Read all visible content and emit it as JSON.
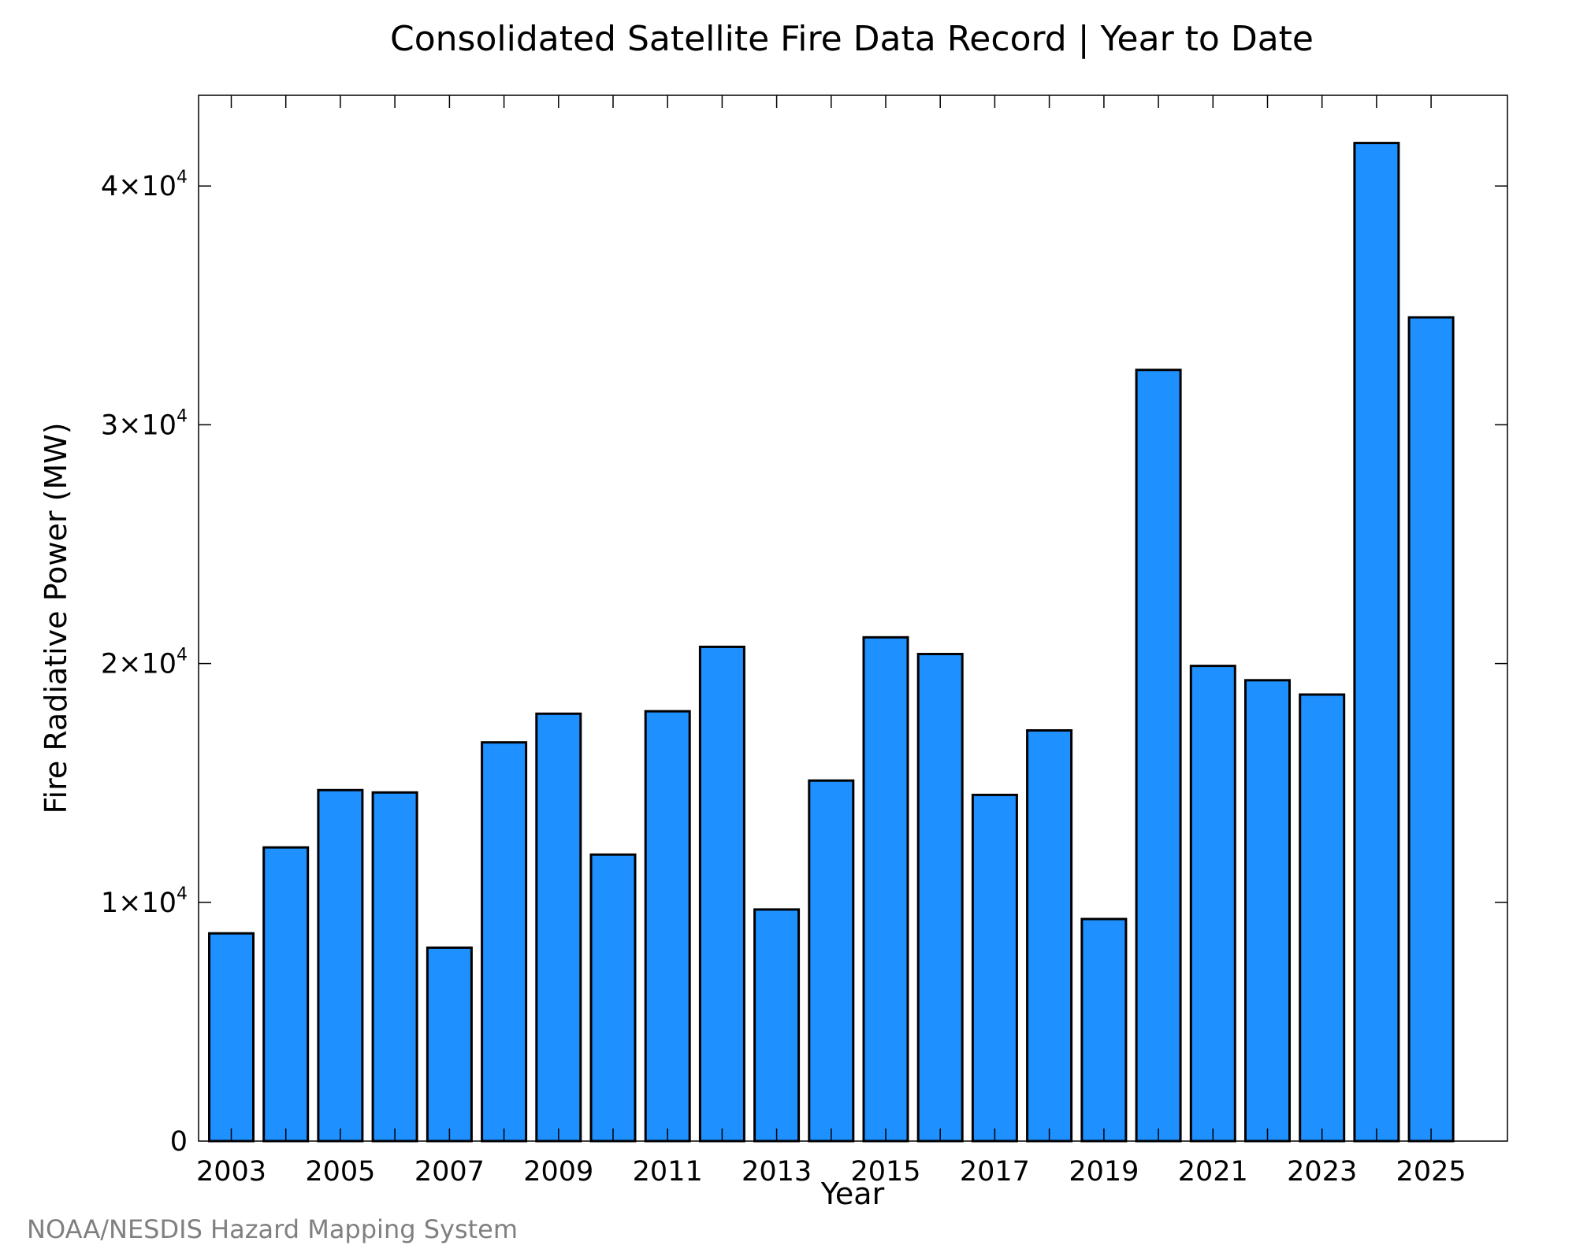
{
  "chart_data": {
    "type": "bar",
    "title": "Consolidated Satellite Fire Data Record | Year to Date",
    "xlabel": "Year",
    "ylabel": "Fire Radiative Power (MW)",
    "categories": [
      2003,
      2004,
      2005,
      2006,
      2007,
      2008,
      2009,
      2010,
      2011,
      2012,
      2013,
      2014,
      2015,
      2016,
      2017,
      2018,
      2019,
      2020,
      2021,
      2022,
      2023,
      2024,
      2025
    ],
    "values": [
      8700,
      12300,
      14700,
      14600,
      8100,
      16700,
      17900,
      12000,
      18000,
      20700,
      9700,
      15100,
      21100,
      20400,
      14500,
      17200,
      9300,
      32300,
      19900,
      19300,
      18700,
      41800,
      34500
    ],
    "ylim": [
      0,
      43800
    ],
    "xlim": [
      2002.4,
      2026.4
    ],
    "x_ticks": [
      {
        "value": 2003,
        "label": "2003"
      },
      {
        "value": 2005,
        "label": "2005"
      },
      {
        "value": 2007,
        "label": "2007"
      },
      {
        "value": 2009,
        "label": "2009"
      },
      {
        "value": 2011,
        "label": "2011"
      },
      {
        "value": 2013,
        "label": "2013"
      },
      {
        "value": 2015,
        "label": "2015"
      },
      {
        "value": 2017,
        "label": "2017"
      },
      {
        "value": 2019,
        "label": "2019"
      },
      {
        "value": 2021,
        "label": "2021"
      },
      {
        "value": 2023,
        "label": "2023"
      },
      {
        "value": 2025,
        "label": "2025"
      }
    ],
    "y_ticks": [
      {
        "value": 0,
        "label": "0",
        "exp": ""
      },
      {
        "value": 10000,
        "label": "1×10",
        "exp": "4"
      },
      {
        "value": 20000,
        "label": "2×10",
        "exp": "4"
      },
      {
        "value": 30000,
        "label": "3×10",
        "exp": "4"
      },
      {
        "value": 40000,
        "label": "4×10",
        "exp": "4"
      }
    ],
    "bar_color": "#1e90ff",
    "bar_edge_color": "#000000",
    "grid": false,
    "legend": false
  },
  "credit": "NOAA/NESDIS Hazard Mapping System"
}
